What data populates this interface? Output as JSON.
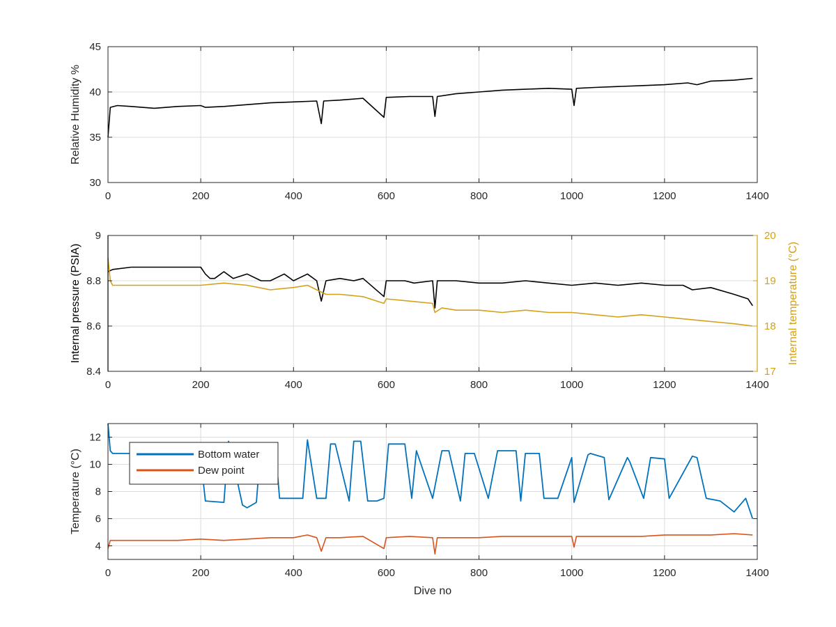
{
  "chart_data": [
    {
      "type": "line",
      "xlabel": "",
      "ylabel": "Relative Humidity %",
      "xlim": [
        0,
        1400
      ],
      "ylim": [
        30,
        45
      ],
      "xticks": [
        "0",
        "200",
        "400",
        "600",
        "800",
        "1000",
        "1200",
        "1400"
      ],
      "yticks": [
        "30",
        "35",
        "40",
        "45"
      ],
      "grid": true,
      "series": [
        {
          "color": "#000000",
          "x": [
            0,
            5,
            20,
            50,
            100,
            150,
            200,
            210,
            250,
            300,
            350,
            400,
            450,
            460,
            465,
            500,
            550,
            595,
            600,
            650,
            700,
            705,
            710,
            750,
            800,
            850,
            900,
            950,
            1000,
            1005,
            1010,
            1050,
            1100,
            1150,
            1200,
            1250,
            1270,
            1300,
            1350,
            1390
          ],
          "y": [
            35,
            38.3,
            38.5,
            38.4,
            38.2,
            38.4,
            38.5,
            38.3,
            38.4,
            38.6,
            38.8,
            38.9,
            39.0,
            36.5,
            39.0,
            39.1,
            39.3,
            37.2,
            39.4,
            39.5,
            39.5,
            37.3,
            39.5,
            39.8,
            40.0,
            40.2,
            40.3,
            40.4,
            40.3,
            38.5,
            40.4,
            40.5,
            40.6,
            40.7,
            40.8,
            41.0,
            40.8,
            41.2,
            41.3,
            41.5
          ]
        }
      ]
    },
    {
      "type": "line",
      "xlabel": "",
      "ylabel": "Internal pressure (PSIA)",
      "y2label": "Internal temperature (°C)",
      "xlim": [
        0,
        1400
      ],
      "ylim": [
        8.4,
        9.0
      ],
      "y2lim": [
        17,
        20
      ],
      "xticks": [
        "0",
        "200",
        "400",
        "600",
        "800",
        "1000",
        "1200",
        "1400"
      ],
      "yticks": [
        "8.4",
        "8.6",
        "8.8",
        "9"
      ],
      "y2ticks": [
        "17",
        "18",
        "19",
        "20"
      ],
      "grid": true,
      "series": [
        {
          "axis": "left",
          "color": "#000000",
          "x": [
            0,
            10,
            50,
            100,
            150,
            200,
            210,
            220,
            230,
            250,
            270,
            300,
            330,
            350,
            380,
            400,
            430,
            450,
            460,
            470,
            500,
            530,
            550,
            595,
            600,
            640,
            660,
            700,
            705,
            710,
            750,
            800,
            850,
            900,
            950,
            1000,
            1050,
            1100,
            1150,
            1200,
            1240,
            1260,
            1300,
            1350,
            1380,
            1390
          ],
          "y": [
            8.84,
            8.85,
            8.86,
            8.86,
            8.86,
            8.86,
            8.83,
            8.81,
            8.81,
            8.84,
            8.81,
            8.83,
            8.8,
            8.8,
            8.83,
            8.8,
            8.83,
            8.8,
            8.71,
            8.8,
            8.81,
            8.8,
            8.81,
            8.73,
            8.8,
            8.8,
            8.79,
            8.8,
            8.68,
            8.8,
            8.8,
            8.79,
            8.79,
            8.8,
            8.79,
            8.78,
            8.79,
            8.78,
            8.79,
            8.78,
            8.78,
            8.76,
            8.77,
            8.74,
            8.72,
            8.69
          ]
        },
        {
          "axis": "right",
          "color": "#D4A017",
          "x": [
            0,
            5,
            10,
            50,
            100,
            150,
            200,
            250,
            300,
            350,
            400,
            430,
            450,
            470,
            500,
            550,
            595,
            600,
            650,
            700,
            705,
            720,
            750,
            800,
            850,
            900,
            950,
            1000,
            1050,
            1100,
            1150,
            1200,
            1250,
            1300,
            1350,
            1390
          ],
          "y": [
            19.5,
            19.0,
            18.9,
            18.9,
            18.9,
            18.9,
            18.9,
            18.95,
            18.9,
            18.8,
            18.85,
            18.9,
            18.8,
            18.7,
            18.7,
            18.65,
            18.5,
            18.6,
            18.55,
            18.5,
            18.3,
            18.4,
            18.35,
            18.35,
            18.3,
            18.35,
            18.3,
            18.3,
            18.25,
            18.2,
            18.25,
            18.2,
            18.15,
            18.1,
            18.05,
            18.0
          ]
        }
      ]
    },
    {
      "type": "line",
      "xlabel": "Dive no",
      "ylabel": "Temperature (°C)",
      "xlim": [
        0,
        1400
      ],
      "ylim": [
        3,
        13
      ],
      "xticks": [
        "0",
        "200",
        "400",
        "600",
        "800",
        "1000",
        "1200",
        "1400"
      ],
      "yticks": [
        "4",
        "6",
        "8",
        "10",
        "12"
      ],
      "grid": true,
      "legend": "top-left",
      "series": [
        {
          "name": "Bottom water",
          "color": "#0072BD",
          "x": [
            0,
            5,
            10,
            50,
            100,
            150,
            200,
            210,
            250,
            260,
            290,
            300,
            320,
            330,
            360,
            370,
            380,
            420,
            430,
            450,
            470,
            480,
            490,
            520,
            530,
            545,
            560,
            580,
            595,
            605,
            640,
            655,
            665,
            700,
            720,
            735,
            760,
            770,
            790,
            820,
            840,
            880,
            890,
            900,
            930,
            940,
            970,
            1000,
            1005,
            1035,
            1040,
            1070,
            1080,
            1120,
            1125,
            1155,
            1170,
            1200,
            1210,
            1260,
            1270,
            1290,
            1320,
            1350,
            1375,
            1390
          ],
          "y": [
            13,
            11,
            10.8,
            10.8,
            10.8,
            10.8,
            10.5,
            7.3,
            7.2,
            11.7,
            7.0,
            6.8,
            7.2,
            11.5,
            11.5,
            7.5,
            7.5,
            7.5,
            11.8,
            7.5,
            7.5,
            11.5,
            11.5,
            7.3,
            11.7,
            11.7,
            7.3,
            7.3,
            7.5,
            11.5,
            11.5,
            7.5,
            11.0,
            7.5,
            11.0,
            11.0,
            7.3,
            10.8,
            10.8,
            7.5,
            11.0,
            11.0,
            7.3,
            10.8,
            10.8,
            7.5,
            7.5,
            10.5,
            7.2,
            10.7,
            10.8,
            10.5,
            7.4,
            10.5,
            10.2,
            7.5,
            10.5,
            10.4,
            7.5,
            10.6,
            10.5,
            7.5,
            7.3,
            6.5,
            7.5,
            6.0
          ]
        },
        {
          "name": "Dew point",
          "color": "#D95319",
          "x": [
            0,
            5,
            50,
            100,
            150,
            200,
            250,
            300,
            350,
            400,
            430,
            450,
            460,
            470,
            500,
            550,
            595,
            600,
            650,
            700,
            705,
            710,
            750,
            800,
            850,
            900,
            950,
            1000,
            1005,
            1010,
            1050,
            1100,
            1150,
            1200,
            1250,
            1300,
            1350,
            1390
          ],
          "y": [
            3.8,
            4.4,
            4.4,
            4.4,
            4.4,
            4.5,
            4.4,
            4.5,
            4.6,
            4.6,
            4.8,
            4.6,
            3.6,
            4.6,
            4.6,
            4.7,
            3.8,
            4.6,
            4.7,
            4.6,
            3.4,
            4.6,
            4.6,
            4.6,
            4.7,
            4.7,
            4.7,
            4.7,
            3.9,
            4.7,
            4.7,
            4.7,
            4.7,
            4.8,
            4.8,
            4.8,
            4.9,
            4.8
          ]
        }
      ]
    }
  ]
}
